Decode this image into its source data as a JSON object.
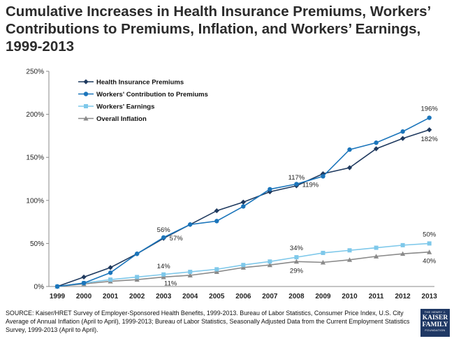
{
  "page": {
    "title": "Cumulative Increases in Health Insurance Premiums, Workers’ Contributions to Premiums, Inflation, and Workers’ Earnings, 1999-2013",
    "source": "SOURCE:  Kaiser/HRET Survey of Employer-Sponsored Health Benefits, 1999-2013.  Bureau of Labor Statistics, Consumer Price Index, U.S. City Average of Annual Inflation (April to April), 1999-2013; Bureau of Labor Statistics, Seasonally Adjusted Data from the Current Employment Statistics Survey, 1999-2013 (April to April).",
    "logo": {
      "line1": "THE HENRY J.",
      "line2": "KAISER",
      "line3": "FAMILY",
      "line4": "FOUNDATION"
    }
  },
  "chart_data": {
    "type": "line",
    "title": "Cumulative Increases in Health Insurance Premiums, Workers’ Contributions to Premiums, Inflation, and Workers’ Earnings, 1999-2013",
    "xlabel": "",
    "ylabel": "",
    "ylim": [
      0,
      250
    ],
    "yticks": [
      0,
      50,
      100,
      150,
      200,
      250
    ],
    "ytick_labels": [
      "0%",
      "50%",
      "100%",
      "150%",
      "200%",
      "250%"
    ],
    "categories": [
      "1999",
      "2000",
      "2001",
      "2002",
      "2003",
      "2004",
      "2005",
      "2006",
      "2007",
      "2008",
      "2009",
      "2010",
      "2011",
      "2012",
      "2013"
    ],
    "grid": false,
    "legend_position": "top-left",
    "series": [
      {
        "name": "Health Insurance Premiums",
        "color": "#1f3a5f",
        "marker": "diamond",
        "values": [
          0,
          11,
          22,
          38,
          56,
          72,
          88,
          98,
          110,
          117,
          131,
          138,
          160,
          172,
          182
        ]
      },
      {
        "name": "Workers' Contribution to Premiums",
        "color": "#1b75bb",
        "marker": "circle",
        "values": [
          0,
          4,
          16,
          38,
          57,
          72,
          76,
          93,
          113,
          119,
          128,
          159,
          167,
          180,
          196
        ]
      },
      {
        "name": "Workers' Earnings",
        "color": "#7ec8ea",
        "marker": "square",
        "values": [
          0,
          4,
          8,
          11,
          14,
          17,
          20,
          25,
          29,
          34,
          39,
          42,
          45,
          48,
          50
        ]
      },
      {
        "name": "Overall Inflation",
        "color": "#8a8a8a",
        "marker": "triangle",
        "values": [
          0,
          3,
          6,
          8,
          11,
          13,
          17,
          22,
          25,
          29,
          28,
          31,
          35,
          38,
          40
        ]
      }
    ],
    "data_labels": [
      {
        "series": 0,
        "index": 4,
        "text": "56%"
      },
      {
        "series": 1,
        "index": 4,
        "text": "57%"
      },
      {
        "series": 0,
        "index": 9,
        "text": "117%"
      },
      {
        "series": 1,
        "index": 9,
        "text": "119%"
      },
      {
        "series": 1,
        "index": 14,
        "text": "196%"
      },
      {
        "series": 0,
        "index": 14,
        "text": "182%"
      },
      {
        "series": 2,
        "index": 4,
        "text": "14%"
      },
      {
        "series": 3,
        "index": 4,
        "text": "11%"
      },
      {
        "series": 2,
        "index": 9,
        "text": "34%"
      },
      {
        "series": 3,
        "index": 9,
        "text": "29%"
      },
      {
        "series": 2,
        "index": 14,
        "text": "50%"
      },
      {
        "series": 3,
        "index": 14,
        "text": "40%"
      }
    ]
  }
}
